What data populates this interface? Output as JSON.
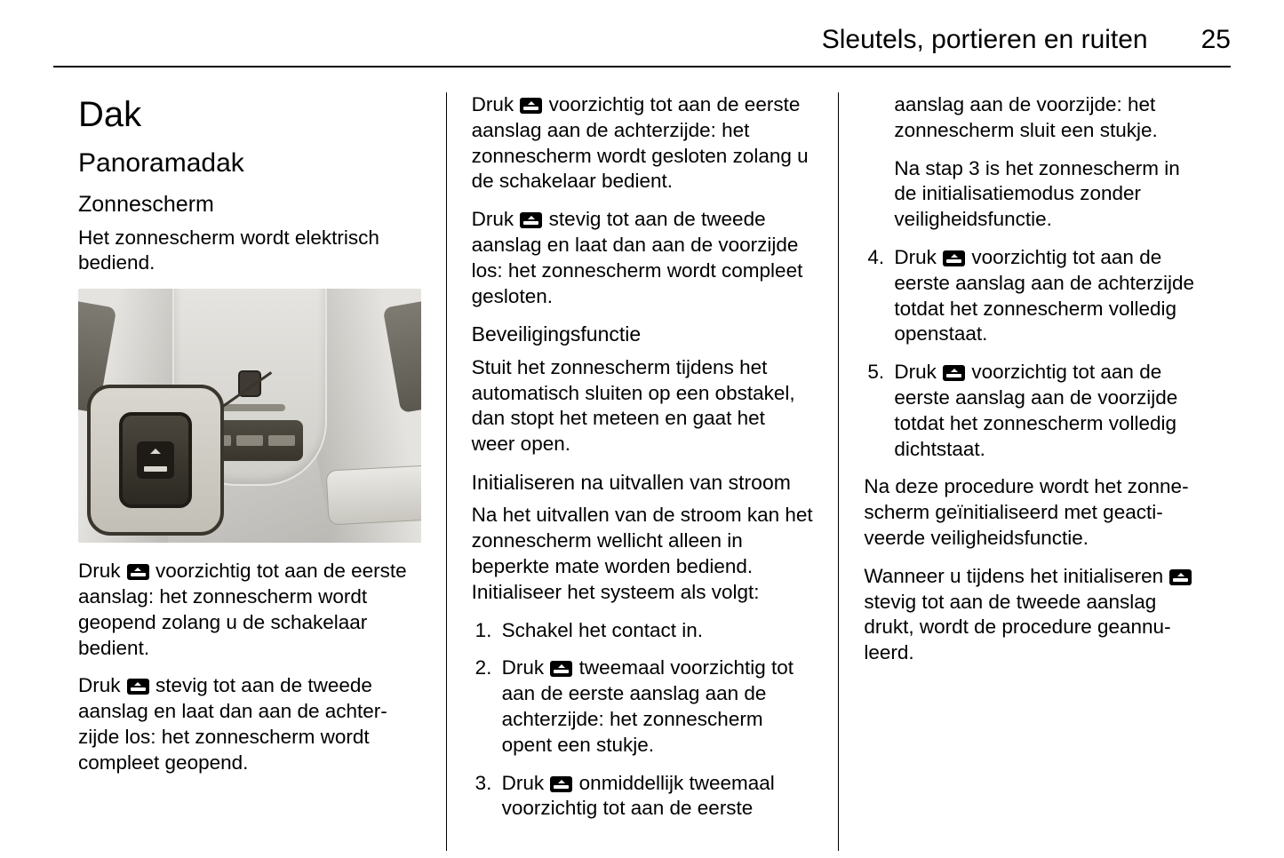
{
  "header": {
    "section": "Sleutels, portieren en ruiten",
    "page": "25"
  },
  "col1": {
    "h1": "Dak",
    "h2": "Panoramadak",
    "h3": "Zonnescherm",
    "p1": "Het zonnescherm wordt elektrisch bediend.",
    "p2a": "Druk ",
    "p2b": " voorzichtig tot aan de eerste aanslag: het zonnescherm wordt geopend zolang u de schakelaar bedient.",
    "p3a": "Druk ",
    "p3b": " stevig tot aan de tweede aanslag en laat dan aan de achter­zijde los: het zonnescherm wordt compleet geopend."
  },
  "col2": {
    "p1a": "Druk ",
    "p1b": " voorzichtig tot aan de eerste aanslag aan de achterzijde: het zonnescherm wordt gesloten zolang u de schakelaar bedient.",
    "p2a": "Druk ",
    "p2b": " stevig tot aan de tweede aanslag en laat dan aan de voorzijde los: het zonnescherm wordt compleet gesloten.",
    "h4a": "Beveiligingsfunctie",
    "p3": "Stuit het zonnescherm tijdens het automatisch sluiten op een obstakel, dan stopt het meteen en gaat het weer open.",
    "h4b": "Initialiseren na uitvallen van stroom",
    "p4": "Na het uitvallen van de stroom kan het zonnescherm wellicht alleen in beperkte mate worden bediend. Initialiseer het systeem als volgt:",
    "li1": "Schakel het contact in.",
    "li2a": "Druk ",
    "li2b": " tweemaal voorzichtig tot aan de eerste aanslag aan de achterzijde: het zonnescherm opent een stukje.",
    "li3a": "Druk ",
    "li3b": " onmiddellijk tweemaal voorzichtig tot aan de eerste"
  },
  "col3": {
    "cont3": "aanslag aan de voorzijde: het zonnescherm sluit een stukje.",
    "cont3b": "Na stap 3 is het zonnescherm in de initialisatiemodus zonder veiligheidsfunctie.",
    "li4a": "Druk ",
    "li4b": " voorzichtig tot aan de eerste aanslag aan de achterzijde totdat het zonnescherm volledig openstaat.",
    "li5a": "Druk ",
    "li5b": " voorzichtig tot aan de eerste aanslag aan de voorzijde totdat het zonnescherm volledig dichtstaat.",
    "p5": "Na deze procedure wordt het zonne­scherm geïnitialiseerd met geacti­veerde veiligheidsfunctie.",
    "p6a": "Wanneer u tijdens het initialiseren ",
    "p6b": " stevig tot aan de tweede aanslag drukt, wordt de procedure geannu­leerd."
  }
}
